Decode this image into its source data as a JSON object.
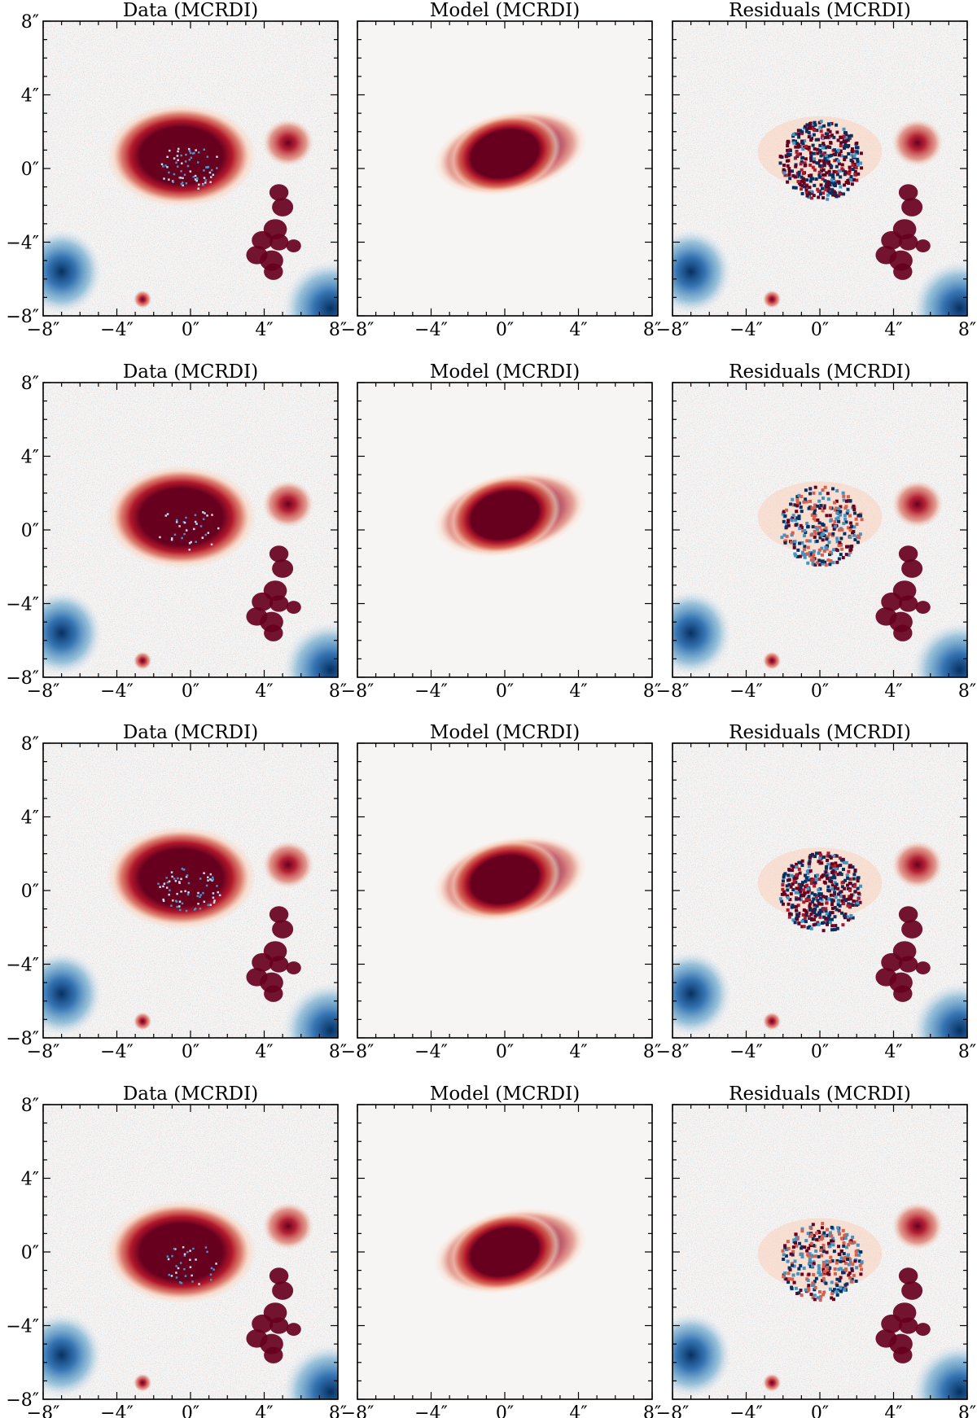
{
  "figure": {
    "rows": 4,
    "cols": 3,
    "colors": {
      "background": "#f7f5f4",
      "positive_dark": "#67001f",
      "positive_mid": "#d6604d",
      "positive_light": "#fbd0b9",
      "negative_light": "#c6dbef",
      "negative_mid": "#4393c3",
      "negative_dark": "#053061",
      "axis": "#000000"
    }
  },
  "chart_data": [
    {
      "type": "heatmap",
      "row": 1,
      "col": 1,
      "kind": "data",
      "title": "Data (MCRDI)",
      "xlim": [
        -8,
        8
      ],
      "ylim": [
        -8,
        8
      ],
      "x_ticks": [
        "−8″",
        "−4″",
        "0″",
        "4″",
        "8″"
      ],
      "y_ticks": [
        "8″",
        "4″",
        "0″",
        "−4″",
        "−8″"
      ],
      "galaxy_center": [
        -0.5,
        0.7
      ],
      "galaxy_extent": [
        6.5,
        4.3
      ],
      "residual_pattern": "strong"
    },
    {
      "type": "heatmap",
      "row": 1,
      "col": 2,
      "kind": "model",
      "title": "Model (MCRDI)",
      "xlim": [
        -8,
        8
      ],
      "ylim": [
        -8,
        8
      ],
      "x_ticks": [
        "−8″",
        "−4″",
        "0″",
        "4″",
        "8″"
      ],
      "y_ticks": [],
      "galaxy_center": [
        0,
        0.8
      ],
      "galaxy_extent": [
        6.5,
        4.2
      ],
      "residual_pattern": "none"
    },
    {
      "type": "heatmap",
      "row": 1,
      "col": 3,
      "kind": "residual",
      "title": "Residuals (MCRDI)",
      "xlim": [
        -8,
        8
      ],
      "ylim": [
        -8,
        8
      ],
      "x_ticks": [
        "−8″",
        "−4″",
        "0″",
        "4″",
        "8″"
      ],
      "y_ticks": [],
      "galaxy_center": [
        0,
        0.5
      ],
      "galaxy_extent": [
        4.5,
        4.3
      ],
      "residual_pattern": "strong"
    },
    {
      "type": "heatmap",
      "row": 2,
      "col": 1,
      "kind": "data",
      "title": "Data (MCRDI)",
      "xlim": [
        -8,
        8
      ],
      "ylim": [
        -8,
        8
      ],
      "x_ticks": [
        "−8″",
        "−4″",
        "0″",
        "4″",
        "8″"
      ],
      "y_ticks": [
        "8″",
        "4″",
        "0″",
        "−4″",
        "−8″"
      ],
      "galaxy_center": [
        -0.5,
        0.7
      ],
      "galaxy_extent": [
        6.5,
        4.3
      ],
      "residual_pattern": "weak"
    },
    {
      "type": "heatmap",
      "row": 2,
      "col": 2,
      "kind": "model",
      "title": "Model (MCRDI)",
      "xlim": [
        -8,
        8
      ],
      "ylim": [
        -8,
        8
      ],
      "x_ticks": [
        "−8″",
        "−4″",
        "0″",
        "4″",
        "8″"
      ],
      "y_ticks": [],
      "galaxy_center": [
        0,
        0.8
      ],
      "galaxy_extent": [
        6.5,
        4.2
      ],
      "residual_pattern": "none"
    },
    {
      "type": "heatmap",
      "row": 2,
      "col": 3,
      "kind": "residual",
      "title": "Residuals (MCRDI)",
      "xlim": [
        -8,
        8
      ],
      "ylim": [
        -8,
        8
      ],
      "x_ticks": [
        "−8″",
        "−4″",
        "0″",
        "4″",
        "8″"
      ],
      "y_ticks": [],
      "galaxy_center": [
        0,
        0.3
      ],
      "galaxy_extent": [
        4.5,
        4.3
      ],
      "residual_pattern": "weak"
    },
    {
      "type": "heatmap",
      "row": 3,
      "col": 1,
      "kind": "data",
      "title": "Data (MCRDI)",
      "xlim": [
        -8,
        8
      ],
      "ylim": [
        -8,
        8
      ],
      "x_ticks": [
        "−8″",
        "−4″",
        "0″",
        "4″",
        "8″"
      ],
      "y_ticks": [
        "8″",
        "4″",
        "0″",
        "−4″",
        "−8″"
      ],
      "galaxy_center": [
        -0.5,
        0.7
      ],
      "galaxy_extent": [
        6.5,
        4.3
      ],
      "residual_pattern": "strong"
    },
    {
      "type": "heatmap",
      "row": 3,
      "col": 2,
      "kind": "model",
      "title": "Model (MCRDI)",
      "xlim": [
        -8,
        8
      ],
      "ylim": [
        -8,
        8
      ],
      "x_ticks": [
        "−8″",
        "−4″",
        "0″",
        "4″",
        "8″"
      ],
      "y_ticks": [],
      "galaxy_center": [
        0,
        0.6
      ],
      "galaxy_extent": [
        6.5,
        4.2
      ],
      "residual_pattern": "none"
    },
    {
      "type": "heatmap",
      "row": 3,
      "col": 3,
      "kind": "residual",
      "title": "Residuals (MCRDI)",
      "xlim": [
        -8,
        8
      ],
      "ylim": [
        -8,
        8
      ],
      "x_ticks": [
        "−8″",
        "−4″",
        "0″",
        "4″",
        "8″"
      ],
      "y_ticks": [],
      "galaxy_center": [
        0,
        0.0
      ],
      "galaxy_extent": [
        4.5,
        4.3
      ],
      "residual_pattern": "strong"
    },
    {
      "type": "heatmap",
      "row": 4,
      "col": 1,
      "kind": "data",
      "title": "Data (MCRDI)",
      "xlim": [
        -8,
        8
      ],
      "ylim": [
        -8,
        8
      ],
      "x_ticks": [
        "−8″",
        "−4″",
        "0″",
        "4″",
        "8″"
      ],
      "y_ticks": [
        "8″",
        "4″",
        "0″",
        "−4″",
        "−8″"
      ],
      "galaxy_center": [
        -0.5,
        0.0
      ],
      "galaxy_extent": [
        6.5,
        4.3
      ],
      "residual_pattern": "weak"
    },
    {
      "type": "heatmap",
      "row": 4,
      "col": 2,
      "kind": "model",
      "title": "Model (MCRDI)",
      "xlim": [
        -8,
        8
      ],
      "ylim": [
        -8,
        8
      ],
      "x_ticks": [
        "−8″",
        "−4″",
        "0″",
        "4″",
        "8″"
      ],
      "y_ticks": [],
      "galaxy_center": [
        0,
        0.0
      ],
      "galaxy_extent": [
        6.5,
        4.2
      ],
      "residual_pattern": "none"
    },
    {
      "type": "heatmap",
      "row": 4,
      "col": 3,
      "kind": "residual",
      "title": "Residuals (MCRDI)",
      "xlim": [
        -8,
        8
      ],
      "ylim": [
        -8,
        8
      ],
      "x_ticks": [
        "−8″",
        "−4″",
        "0″",
        "4″",
        "8″"
      ],
      "y_ticks": [],
      "galaxy_center": [
        0,
        -0.5
      ],
      "galaxy_extent": [
        4.5,
        4.3
      ],
      "residual_pattern": "weak"
    }
  ]
}
